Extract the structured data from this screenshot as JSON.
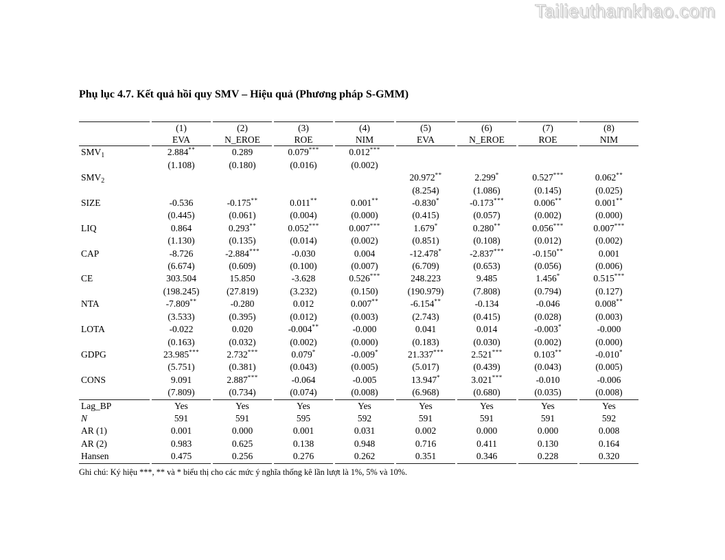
{
  "watermark": "Tailieuthamkhao.com",
  "title": "Phụ lục 4.7. Kết quả hồi quy SMV – Hiệu quả (Phương pháp S-GMM)",
  "table": {
    "header_numbers": [
      "(1)",
      "(2)",
      "(3)",
      "(4)",
      "(5)",
      "(6)",
      "(7)",
      "(8)"
    ],
    "header_models": [
      "EVA",
      "N_EROE",
      "ROE",
      "NIM",
      "EVA",
      "N_EROE",
      "ROE",
      "NIM"
    ],
    "variables": [
      {
        "label": "SMV",
        "sub": "1",
        "coefs": [
          "2.884**",
          "0.289",
          "0.079***",
          "0.012***",
          "",
          "",
          "",
          ""
        ],
        "ses": [
          "(1.108)",
          "(0.180)",
          "(0.016)",
          "(0.002)",
          "",
          "",
          "",
          ""
        ]
      },
      {
        "label": "SMV",
        "sub": "2",
        "coefs": [
          "",
          "",
          "",
          "",
          "20.972**",
          "2.299*",
          "0.527***",
          "0.062**"
        ],
        "ses": [
          "",
          "",
          "",
          "",
          "(8.254)",
          "(1.086)",
          "(0.145)",
          "(0.025)"
        ]
      },
      {
        "label": "SIZE",
        "coefs": [
          "-0.536",
          "-0.175**",
          "0.011**",
          "0.001**",
          "-0.830*",
          "-0.173***",
          "0.006**",
          "0.001**"
        ],
        "ses": [
          "(0.445)",
          "(0.061)",
          "(0.004)",
          "(0.000)",
          "(0.415)",
          "(0.057)",
          "(0.002)",
          "(0.000)"
        ]
      },
      {
        "label": "LIQ",
        "coefs": [
          "0.864",
          "0.293**",
          "0.052***",
          "0.007***",
          "1.679*",
          "0.280**",
          "0.056***",
          "0.007***"
        ],
        "ses": [
          "(1.130)",
          "(0.135)",
          "(0.014)",
          "(0.002)",
          "(0.851)",
          "(0.108)",
          "(0.012)",
          "(0.002)"
        ]
      },
      {
        "label": "CAP",
        "coefs": [
          "-8.726",
          "-2.884***",
          "-0.030",
          "0.004",
          "-12.478*",
          "-2.837***",
          "-0.150**",
          "0.001"
        ],
        "ses": [
          "(6.674)",
          "(0.609)",
          "(0.100)",
          "(0.007)",
          "(6.709)",
          "(0.653)",
          "(0.056)",
          "(0.006)"
        ]
      },
      {
        "label": "CE",
        "coefs": [
          "303.504",
          "15.850",
          "-3.628",
          "0.526***",
          "248.223",
          "9.485",
          "1.456*",
          "0.515***"
        ],
        "ses": [
          "(198.245)",
          "(27.819)",
          "(3.232)",
          "(0.150)",
          "(190.979)",
          "(7.808)",
          "(0.794)",
          "(0.127)"
        ]
      },
      {
        "label": "NTA",
        "coefs": [
          "-7.809**",
          "-0.280",
          "0.012",
          "0.007**",
          "-6.154**",
          "-0.134",
          "-0.046",
          "0.008**"
        ],
        "ses": [
          "(3.533)",
          "(0.395)",
          "(0.012)",
          "(0.003)",
          "(2.743)",
          "(0.415)",
          "(0.028)",
          "(0.003)"
        ]
      },
      {
        "label": "LOTA",
        "coefs": [
          "-0.022",
          "0.020",
          "-0.004**",
          "-0.000",
          "0.041",
          "0.014",
          "-0.003*",
          "-0.000"
        ],
        "ses": [
          "(0.163)",
          "(0.032)",
          "(0.002)",
          "(0.000)",
          "(0.183)",
          "(0.030)",
          "(0.002)",
          "(0.000)"
        ]
      },
      {
        "label": "GDPG",
        "coefs": [
          "23.985***",
          "2.732***",
          "0.079*",
          "-0.009*",
          "21.337***",
          "2.521***",
          "0.103**",
          "-0.010*"
        ],
        "ses": [
          "(5.751)",
          "(0.381)",
          "(0.043)",
          "(0.005)",
          "(5.017)",
          "(0.439)",
          "(0.043)",
          "(0.005)"
        ]
      },
      {
        "label": "CONS",
        "coefs": [
          "9.091",
          "2.887***",
          "-0.064",
          "-0.005",
          "13.947*",
          "3.021***",
          "-0.010",
          "-0.006"
        ],
        "ses": [
          "(7.809)",
          "(0.734)",
          "(0.074)",
          "(0.008)",
          "(6.968)",
          "(0.680)",
          "(0.035)",
          "(0.008)"
        ]
      }
    ],
    "summary_rows": [
      {
        "label": "Lag_BP",
        "cells": [
          "Yes",
          "Yes",
          "Yes",
          "Yes",
          "Yes",
          "Yes",
          "Yes",
          "Yes"
        ]
      },
      {
        "label": "N",
        "italic": true,
        "cells": [
          "591",
          "591",
          "595",
          "592",
          "591",
          "591",
          "591",
          "592"
        ]
      },
      {
        "label": "AR (1)",
        "cells": [
          "0.001",
          "0.000",
          "0.001",
          "0.031",
          "0.002",
          "0.000",
          "0.000",
          "0.008"
        ]
      },
      {
        "label": "AR (2)",
        "cells": [
          "0.983",
          "0.625",
          "0.138",
          "0.948",
          "0.716",
          "0.411",
          "0.130",
          "0.164"
        ]
      },
      {
        "label": "Hansen",
        "cells": [
          "0.475",
          "0.256",
          "0.276",
          "0.262",
          "0.351",
          "0.346",
          "0.228",
          "0.320"
        ]
      }
    ]
  },
  "footnote": "Ghi chú: Ký hiệu ***, ** và * biểu thị cho các mức ý nghĩa thống kê lần lượt là 1%, 5% và 10%."
}
